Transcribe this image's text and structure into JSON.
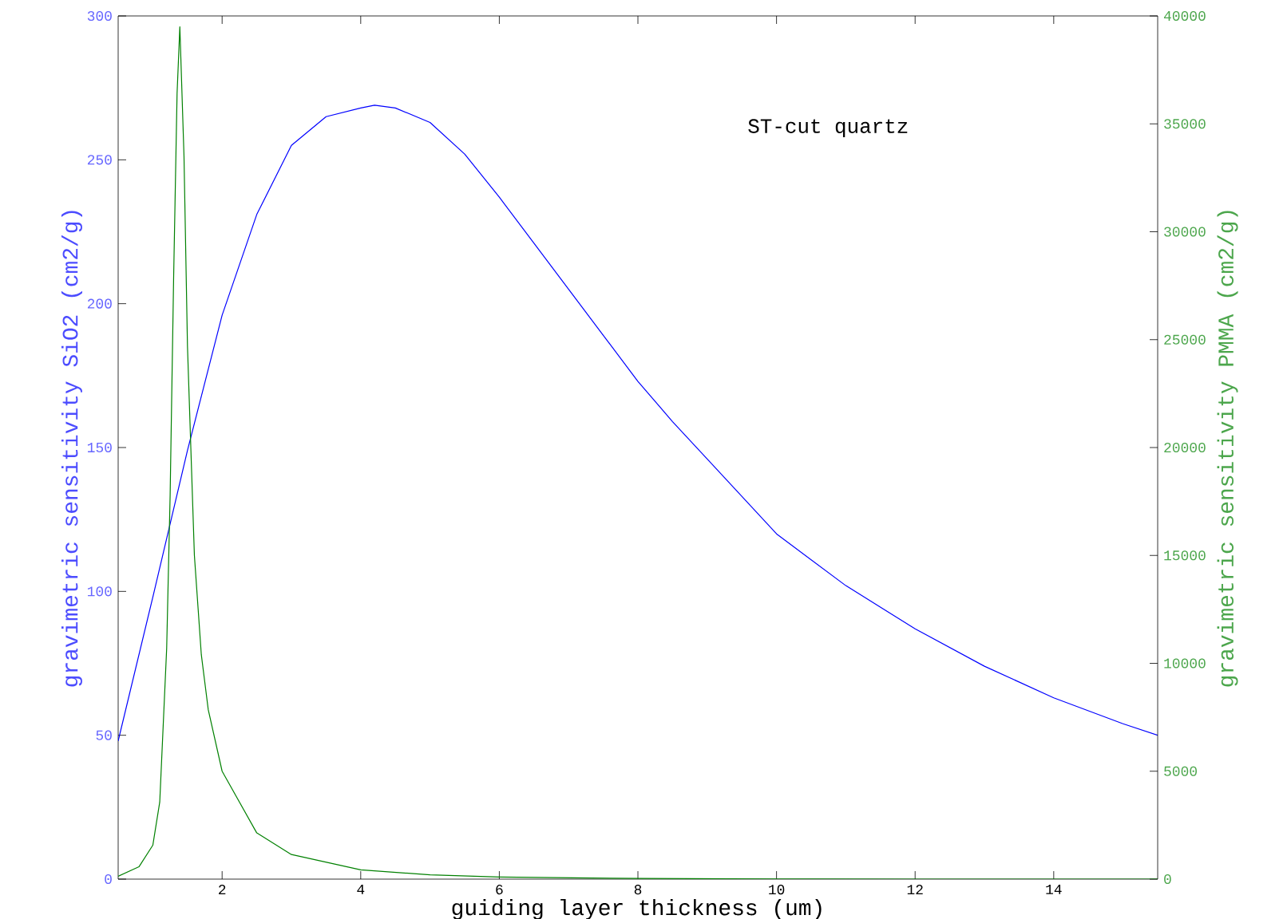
{
  "chart_data": {
    "type": "line",
    "xlabel": "guiding layer thickness (um)",
    "ylabel": "gravimetric sensitivity SiO2 (cm2/g)",
    "y2label": "gravimetric sensitivity PMMA (cm2/g)",
    "annotations": [
      "ST-cut quartz"
    ],
    "xlim": [
      0.5,
      15.5
    ],
    "xticks": [
      2,
      4,
      6,
      8,
      10,
      12,
      14
    ],
    "ylim": [
      0,
      300
    ],
    "yticks": [
      0,
      50,
      100,
      150,
      200,
      250,
      300
    ],
    "y2lim": [
      0,
      40000
    ],
    "y2ticks": [
      0,
      5000,
      10000,
      15000,
      20000,
      25000,
      30000,
      35000,
      40000
    ],
    "series": [
      {
        "color": "#0000ff",
        "axis": "y",
        "x": [
          0.5,
          1,
          1.5,
          2,
          2.5,
          3,
          3.5,
          4,
          4.2,
          4.5,
          5,
          5.5,
          6,
          6.5,
          7,
          7.5,
          8,
          8.5,
          9,
          10,
          11,
          12,
          13,
          14,
          15,
          15.5
        ],
        "values": [
          48,
          98,
          149,
          196,
          231,
          255,
          265,
          268,
          269,
          268,
          263,
          252,
          237,
          221,
          205,
          189,
          173,
          159,
          146,
          120,
          102,
          87,
          74,
          63,
          54,
          50
        ]
      },
      {
        "color": "#008000",
        "axis": "y2",
        "x": [
          0.5,
          0.8,
          1.0,
          1.1,
          1.2,
          1.25,
          1.3,
          1.35,
          1.39,
          1.45,
          1.5,
          1.6,
          1.7,
          1.8,
          2.0,
          2.5,
          3,
          4,
          5,
          6,
          8,
          10,
          12,
          15.5
        ],
        "values": [
          130,
          570,
          1570,
          3570,
          10700,
          17800,
          27800,
          36400,
          39500,
          33500,
          24700,
          15000,
          10400,
          7850,
          5000,
          2140,
          1140,
          430,
          200,
          100,
          30,
          10,
          0,
          0
        ]
      }
    ]
  }
}
